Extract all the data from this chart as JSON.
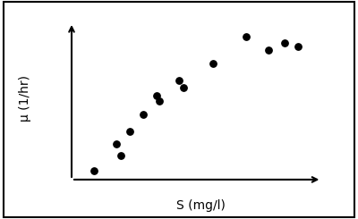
{
  "x": [
    1.0,
    2.0,
    2.2,
    2.6,
    3.2,
    3.8,
    3.9,
    4.8,
    5.0,
    6.3,
    7.8,
    8.8,
    9.5,
    10.1
  ],
  "y": [
    0.05,
    0.21,
    0.14,
    0.28,
    0.38,
    0.49,
    0.46,
    0.58,
    0.54,
    0.68,
    0.84,
    0.76,
    0.8,
    0.78
  ],
  "xlabel": "S (mg/l)",
  "ylabel": "μ (1/hr)",
  "dot_color": "#000000",
  "dot_size": 28,
  "bg_color": "#ffffff",
  "border_color": "#000000",
  "xlim": [
    0,
    11.5
  ],
  "ylim": [
    0,
    0.95
  ],
  "xlabel_fontsize": 10,
  "ylabel_fontsize": 10
}
